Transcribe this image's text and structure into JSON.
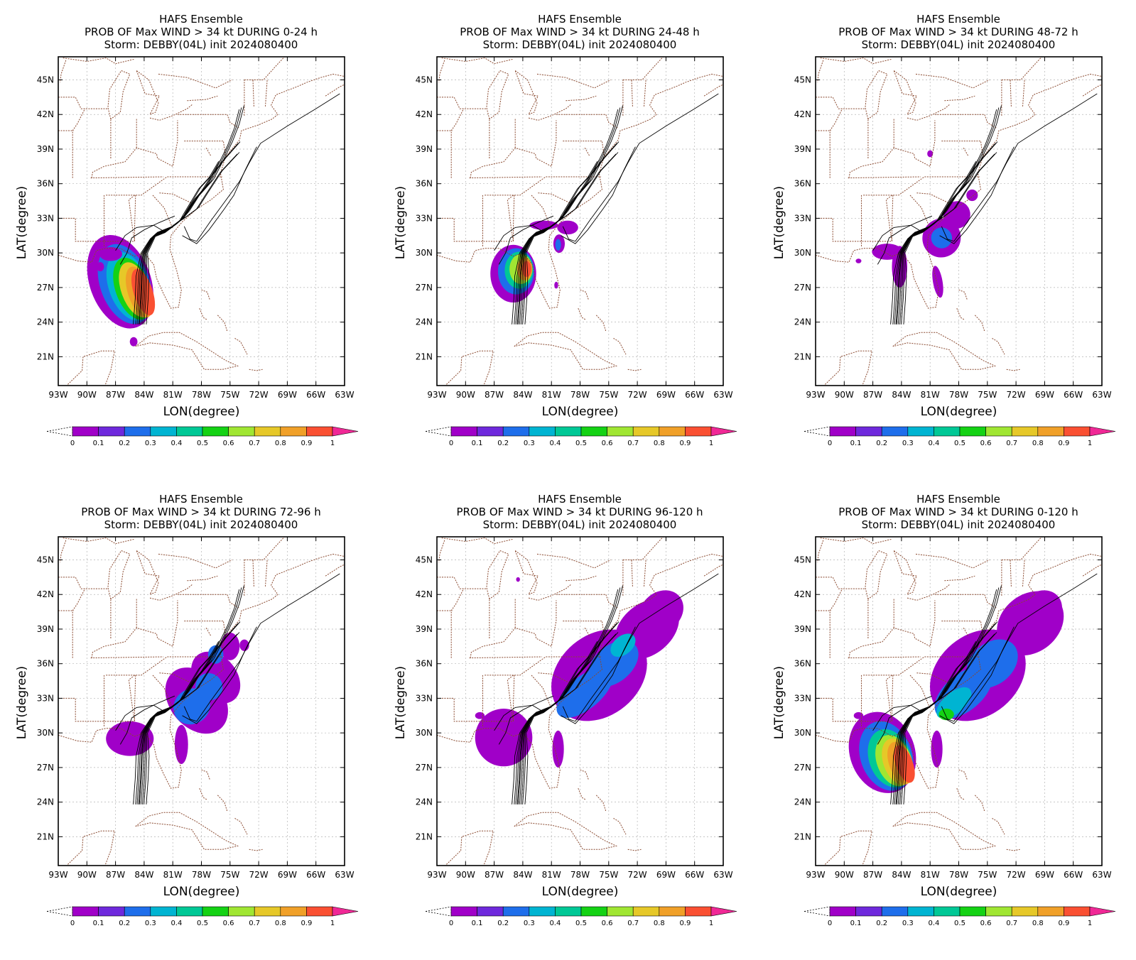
{
  "model_title": "HAFS Ensemble",
  "storm_line": "Storm: DEBBY(04L) init 2024080400",
  "panels": [
    {
      "period_title": "PROB OF Max WIND > 34 kt DURING  0-24 h",
      "period": "0-24h"
    },
    {
      "period_title": "PROB OF Max WIND > 34 kt DURING 24-48 h",
      "period": "24-48h"
    },
    {
      "period_title": "PROB OF Max WIND > 34 kt DURING 48-72 h",
      "period": "48-72h"
    },
    {
      "period_title": "PROB OF Max WIND > 34 kt DURING 72-96 h",
      "period": "72-96h"
    },
    {
      "period_title": "PROB OF Max WIND > 34 kt DURING 96-120 h",
      "period": "96-120h"
    },
    {
      "period_title": "PROB OF Max WIND > 34 kt DURING 0-120 h",
      "period": "0-120h"
    }
  ],
  "axes": {
    "xlabel": "LON(degree)",
    "ylabel": "LAT(degree)",
    "lon_ticks": [
      "93W",
      "90W",
      "87W",
      "84W",
      "81W",
      "78W",
      "75W",
      "72W",
      "69W",
      "66W",
      "63W"
    ],
    "lat_ticks": [
      "45N",
      "42N",
      "39N",
      "36N",
      "33N",
      "30N",
      "27N",
      "24N",
      "21N"
    ],
    "lon_range": [
      -93,
      -63
    ],
    "lat_range": [
      18.5,
      47
    ]
  },
  "colorbar": {
    "labels": [
      "0",
      "0.1",
      "0.2",
      "0.3",
      "0.4",
      "0.5",
      "0.6",
      "0.7",
      "0.8",
      "0.9",
      "1"
    ],
    "colors": [
      "#a000c8",
      "#6e28dc",
      "#1e6eeb",
      "#00b4d2",
      "#00c896",
      "#14d214",
      "#a0e632",
      "#e6c828",
      "#f0a028",
      "#fa5032",
      "#f02896"
    ]
  }
}
